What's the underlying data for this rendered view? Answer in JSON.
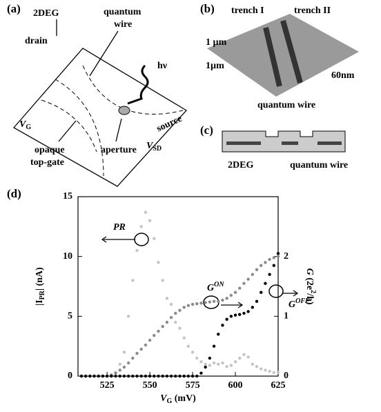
{
  "panels": {
    "a": {
      "label": "(a)",
      "texts": {
        "twodeg": "2DEG",
        "wire1": "quantum",
        "wire2": "wire",
        "hv": "hν",
        "drain": "drain",
        "vg": "V",
        "vg_sub": "G",
        "source": "source",
        "vsd": "V",
        "vsd_sub": "SD",
        "gate1": "opaque",
        "gate2": "top-gate",
        "aperture": "aperture"
      }
    },
    "b": {
      "label": "(b)",
      "texts": {
        "trench1": "trench I",
        "trench2": "trench II",
        "um1": "1 µm",
        "um2": "1µm",
        "nm": "60nm",
        "wire": "quantum wire"
      }
    },
    "c": {
      "label": "(c)",
      "texts": {
        "twodeg": "2DEG",
        "wire": "quantum wire"
      }
    },
    "d": {
      "label": "(d)"
    }
  },
  "chart_data": {
    "type": "scatter",
    "ylabel": {
      "pre": "|I",
      "sub": "PR",
      "post": "| (nA)"
    },
    "xlabel": {
      "pre": "V",
      "sub": "G",
      "post": " (mV)"
    },
    "y2label": {
      "pre": "G",
      "post": " (2e",
      "sup": "2",
      "end": "/h)"
    },
    "annotations": {
      "pr": "PR",
      "gon": {
        "base": "G",
        "sup": "ON"
      },
      "goff": {
        "base": "G",
        "sup": "OFF"
      }
    },
    "xlim": [
      508,
      625
    ],
    "xticks": [
      525,
      550,
      575,
      600,
      625
    ],
    "ylim": [
      0,
      15
    ],
    "yticks": [
      0,
      5,
      10,
      15
    ],
    "y2lim": [
      0,
      3
    ],
    "y2ticks": [
      0,
      1,
      2
    ],
    "x": [
      510,
      512.5,
      515,
      517.5,
      520,
      522.5,
      525,
      527.5,
      530,
      532.5,
      535,
      537.5,
      540,
      542.5,
      545,
      547.5,
      550,
      552.5,
      555,
      557.5,
      560,
      562.5,
      565,
      567.5,
      570,
      572.5,
      575,
      577.5,
      580,
      582.5,
      585,
      587.5,
      590,
      592.5,
      595,
      597.5,
      600,
      602.5,
      605,
      607.5,
      610,
      612.5,
      615,
      617.5,
      620,
      622.5,
      625
    ],
    "series": [
      {
        "color": "#c4c4c4",
        "axis": "y",
        "values": [
          0,
          0,
          0,
          0,
          0,
          0,
          0,
          0.1,
          0.3,
          1,
          2,
          5,
          8,
          10.5,
          12.5,
          13.7,
          13,
          11.5,
          9.5,
          8,
          6.5,
          6,
          4.5,
          4,
          3.2,
          2.5,
          2,
          1.5,
          1.2,
          1,
          0.9,
          1.1,
          1,
          1.1,
          0.8,
          0.9,
          1.2,
          1.5,
          1.8,
          1.6,
          1,
          0.8,
          0.6,
          0.5,
          0.4,
          0.3,
          0.3
        ]
      },
      {
        "color": "#8a8a8a",
        "axis": "y2",
        "values": [
          0,
          0,
          0,
          0,
          0,
          0,
          0,
          0.02,
          0.05,
          0.1,
          0.15,
          0.22,
          0.3,
          0.38,
          0.45,
          0.52,
          0.6,
          0.68,
          0.75,
          0.83,
          0.9,
          0.98,
          1.05,
          1.1,
          1.15,
          1.18,
          1.2,
          1.21,
          1.22,
          1.23,
          1.24,
          1.25,
          1.25,
          1.27,
          1.3,
          1.35,
          1.4,
          1.47,
          1.55,
          1.62,
          1.7,
          1.78,
          1.85,
          1.9,
          1.95,
          1.98,
          2.0
        ]
      },
      {
        "color": "#000000",
        "axis": "y2",
        "values": [
          0,
          0,
          0,
          0,
          0,
          0,
          0,
          0,
          0,
          0,
          0,
          0,
          0,
          0,
          0,
          0,
          0,
          0,
          0,
          0,
          0,
          0,
          0,
          0,
          0,
          0,
          0,
          0,
          0.05,
          0.15,
          0.3,
          0.5,
          0.7,
          0.85,
          0.95,
          1.0,
          1.02,
          1.03,
          1.05,
          1.08,
          1.15,
          1.25,
          1.4,
          1.55,
          1.7,
          1.85,
          2.05
        ]
      }
    ]
  }
}
